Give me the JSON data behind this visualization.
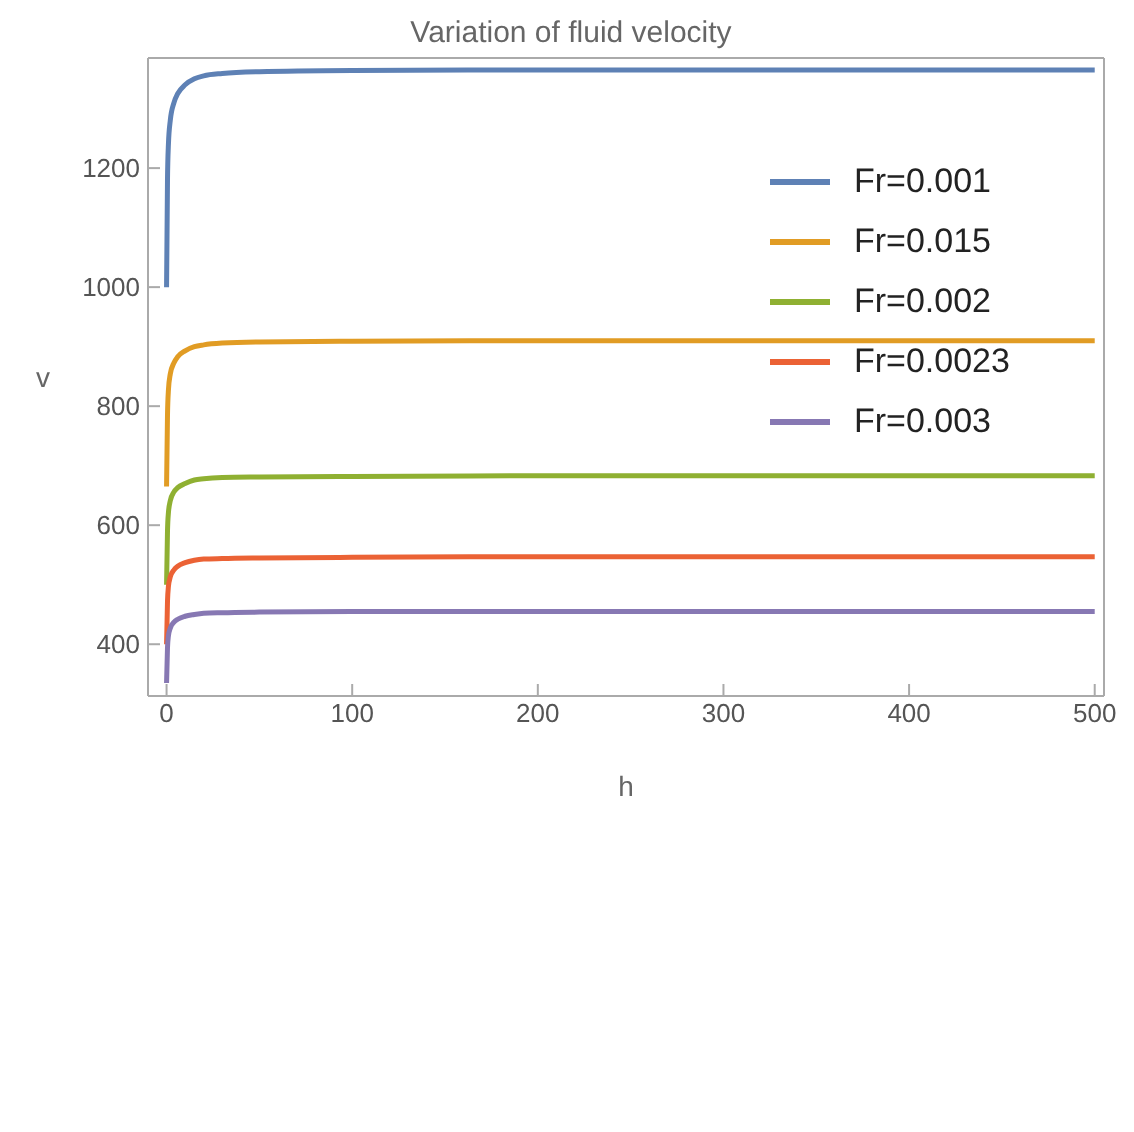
{
  "chart_data": {
    "type": "line",
    "title": "Variation of fluid velocity",
    "xlabel": "h",
    "ylabel": "v",
    "x": [
      0,
      0.5,
      1,
      2,
      4,
      6,
      10,
      15,
      20,
      30,
      50,
      100,
      200,
      500
    ],
    "series": [
      {
        "name": "Fr=0.001",
        "color": "#5e81b5",
        "values": [
          1000,
          1180,
          1240,
          1280,
          1310,
          1325,
          1340,
          1350,
          1355,
          1359,
          1362,
          1364,
          1365,
          1365
        ]
      },
      {
        "name": "Fr=0.015",
        "color": "#e19c24",
        "values": [
          665,
          785,
          827,
          854,
          873,
          883,
          893,
          900,
          903,
          906,
          908,
          909,
          910,
          910
        ]
      },
      {
        "name": "Fr=0.002",
        "color": "#8fb032",
        "values": [
          500,
          590,
          621,
          641,
          656,
          663,
          670,
          676,
          678,
          680,
          681,
          682,
          683,
          683
        ]
      },
      {
        "name": "Fr=0.0023",
        "color": "#eb6235",
        "values": [
          400,
          472,
          497,
          513,
          525,
          531,
          537,
          541,
          543,
          544,
          545,
          546,
          547,
          547
        ]
      },
      {
        "name": "Fr=0.003",
        "color": "#8778b3",
        "values": [
          335,
          394,
          414,
          427,
          437,
          442,
          447,
          450,
          452,
          453,
          454,
          455,
          455,
          455
        ]
      }
    ],
    "xlim": [
      -10,
      505
    ],
    "xticks": [
      0,
      100,
      200,
      300,
      400,
      500
    ],
    "ylim": [
      313,
      1385
    ],
    "yticks": [
      400,
      600,
      800,
      1000,
      1200
    ],
    "legend": "top right",
    "marker": "none",
    "line_style": "solid"
  }
}
